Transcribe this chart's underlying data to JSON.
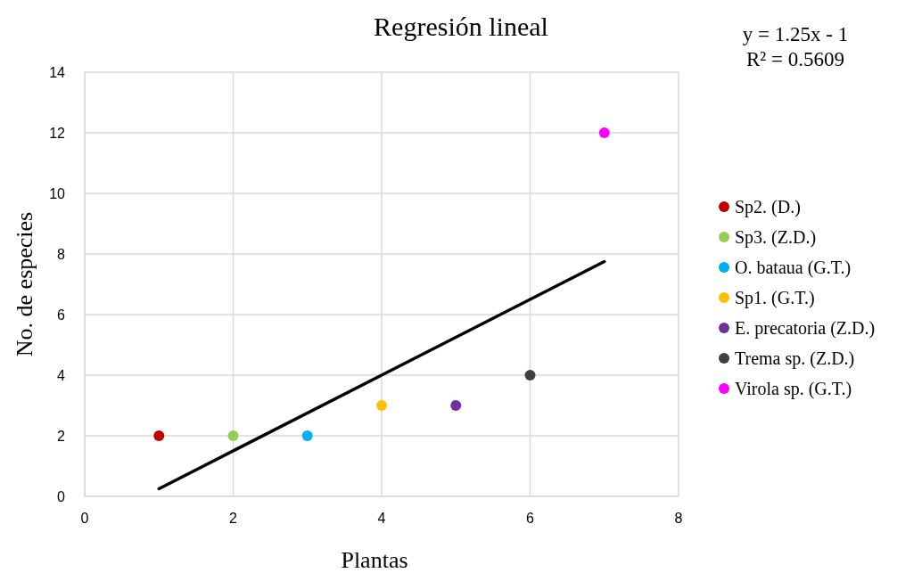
{
  "chart_data": {
    "type": "scatter",
    "title": "Regresión lineal",
    "xlabel": "Plantas",
    "ylabel": "No. de especies",
    "annotations": [
      "y = 1.25x - 1",
      "R² = 0.5609"
    ],
    "xlim": [
      0,
      8
    ],
    "xticks": [
      0,
      2,
      4,
      6,
      8
    ],
    "ylim": [
      0,
      14
    ],
    "yticks": [
      0,
      2,
      4,
      6,
      8,
      10,
      12,
      14
    ],
    "grid": true,
    "legend": "right",
    "marker": "circle",
    "series": [
      {
        "name": "Sp2. (D.)",
        "color": "#c00000",
        "x": [
          1
        ],
        "values": [
          2
        ]
      },
      {
        "name": "Sp3. (Z.D.)",
        "color": "#92d050",
        "x": [
          2
        ],
        "values": [
          2
        ]
      },
      {
        "name": "O. bataua (G.T.)",
        "color": "#00b0f0",
        "x": [
          3
        ],
        "values": [
          2
        ]
      },
      {
        "name": "Sp1. (G.T.)",
        "color": "#ffc000",
        "x": [
          4
        ],
        "values": [
          3
        ]
      },
      {
        "name": "E. precatoria (Z.D.)",
        "color": "#7030a0",
        "x": [
          5
        ],
        "values": [
          3
        ]
      },
      {
        "name": "Trema sp. (Z.D.)",
        "color": "#404040",
        "x": [
          6
        ],
        "values": [
          4
        ]
      },
      {
        "name": "Virola sp. (G.T.)",
        "color": "#ff00ff",
        "x": [
          7
        ],
        "values": [
          12
        ]
      },
      {
        "type": "line",
        "marker": "none",
        "color": "#000000",
        "x": [
          1,
          7
        ],
        "values": [
          0.25,
          7.75
        ]
      }
    ]
  }
}
